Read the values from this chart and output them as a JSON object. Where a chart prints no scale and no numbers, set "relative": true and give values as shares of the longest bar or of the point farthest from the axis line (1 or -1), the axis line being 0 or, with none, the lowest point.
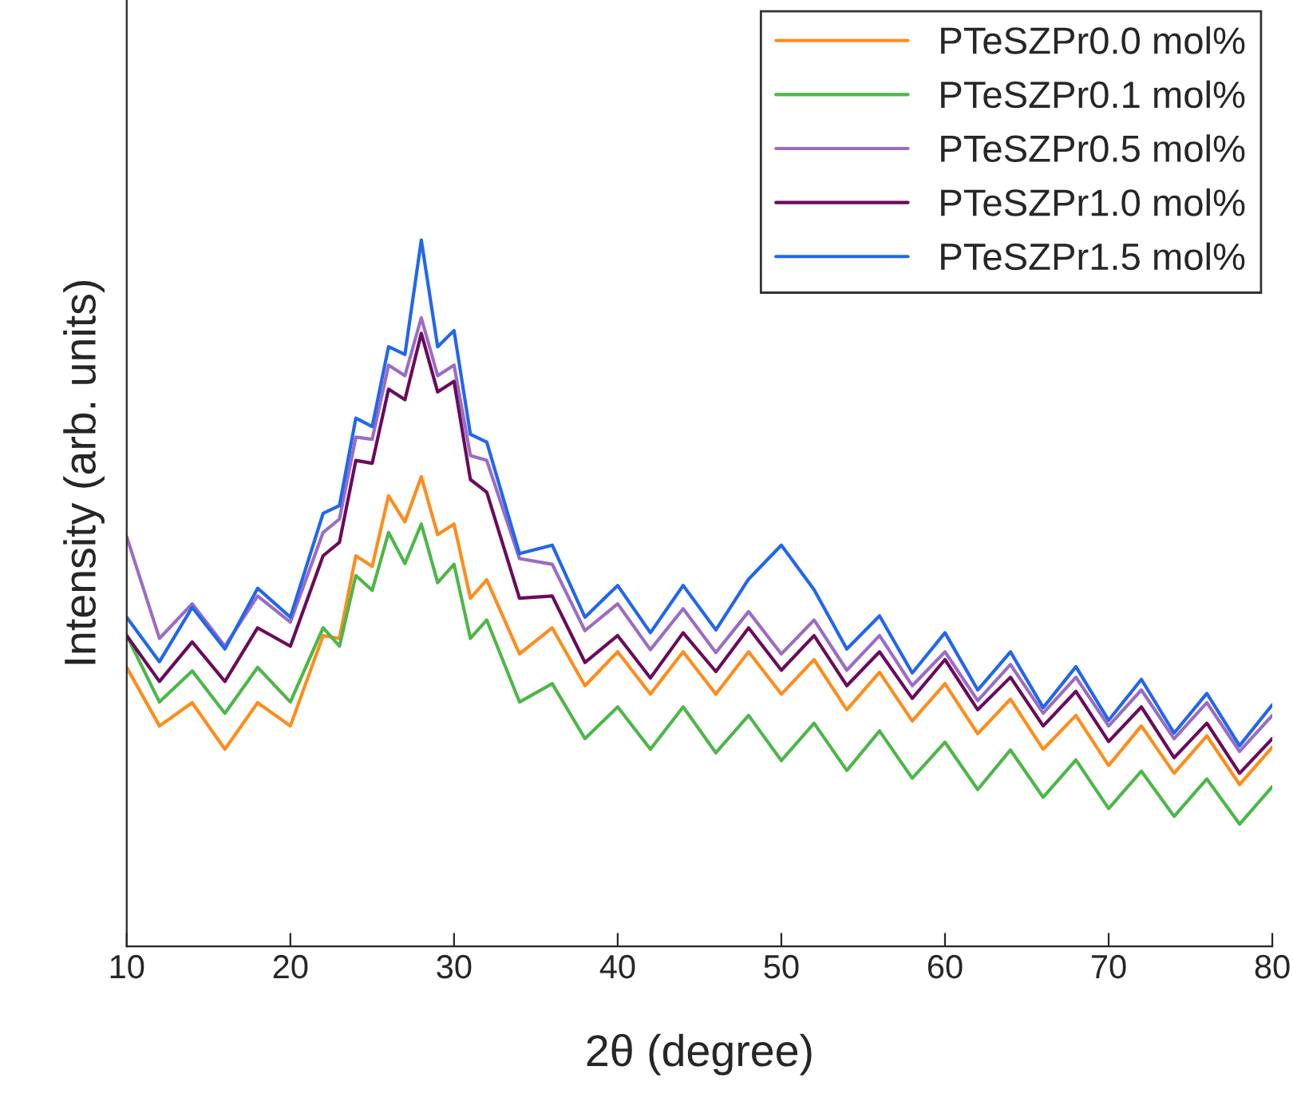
{
  "chart_data": {
    "type": "line",
    "relative": true,
    "xlabel": "2θ (degree)",
    "ylabel": "Intensity (arb. units)",
    "x": [
      10,
      12,
      14,
      16,
      18,
      20,
      22,
      23,
      24,
      25,
      26,
      27,
      28,
      29,
      30,
      31,
      32,
      34,
      36,
      38,
      40,
      42,
      44,
      46,
      48,
      50,
      52,
      54,
      56,
      58,
      60,
      62,
      64,
      66,
      68,
      70,
      72,
      74,
      76,
      78,
      80
    ],
    "xlim": [
      10,
      80
    ],
    "xticks": [
      10,
      20,
      30,
      40,
      50,
      60,
      70,
      80
    ],
    "legend": "top right",
    "grid": false,
    "line_style": "solid",
    "marker": "none",
    "series": [
      {
        "name": "PTeSZPr0.0 mol%",
        "color": "#ff8c1a",
        "values": [
          0.395,
          0.312,
          0.345,
          0.279,
          0.345,
          0.312,
          0.44,
          0.436,
          0.553,
          0.538,
          0.638,
          0.601,
          0.665,
          0.583,
          0.598,
          0.493,
          0.519,
          0.414,
          0.451,
          0.369,
          0.417,
          0.357,
          0.417,
          0.357,
          0.417,
          0.357,
          0.406,
          0.335,
          0.388,
          0.319,
          0.372,
          0.301,
          0.35,
          0.279,
          0.327,
          0.256,
          0.312,
          0.245,
          0.298,
          0.229,
          0.282
        ]
      },
      {
        "name": "PTeSZPr0.1 mol%",
        "color": "#4cb748",
        "values": [
          0.44,
          0.346,
          0.39,
          0.33,
          0.395,
          0.346,
          0.451,
          0.425,
          0.525,
          0.504,
          0.586,
          0.542,
          0.598,
          0.515,
          0.541,
          0.436,
          0.462,
          0.346,
          0.372,
          0.294,
          0.339,
          0.279,
          0.339,
          0.274,
          0.327,
          0.263,
          0.316,
          0.249,
          0.305,
          0.238,
          0.289,
          0.222,
          0.278,
          0.211,
          0.264,
          0.195,
          0.248,
          0.184,
          0.237,
          0.173,
          0.226
        ]
      },
      {
        "name": "PTeSZPr0.5 mol%",
        "color": "#9b6cc4",
        "values": [
          0.58,
          0.436,
          0.485,
          0.425,
          0.496,
          0.459,
          0.586,
          0.605,
          0.721,
          0.718,
          0.823,
          0.808,
          0.89,
          0.808,
          0.823,
          0.695,
          0.688,
          0.549,
          0.541,
          0.447,
          0.485,
          0.42,
          0.478,
          0.416,
          0.474,
          0.414,
          0.462,
          0.391,
          0.44,
          0.369,
          0.417,
          0.348,
          0.399,
          0.33,
          0.381,
          0.312,
          0.363,
          0.294,
          0.345,
          0.276,
          0.327
        ]
      },
      {
        "name": "PTeSZPr1.0 mol%",
        "color": "#6b0a5c",
        "values": [
          0.44,
          0.375,
          0.431,
          0.375,
          0.451,
          0.425,
          0.553,
          0.572,
          0.688,
          0.684,
          0.789,
          0.774,
          0.868,
          0.785,
          0.8,
          0.661,
          0.643,
          0.493,
          0.496,
          0.402,
          0.44,
          0.38,
          0.444,
          0.389,
          0.451,
          0.391,
          0.44,
          0.369,
          0.417,
          0.351,
          0.406,
          0.335,
          0.381,
          0.312,
          0.361,
          0.29,
          0.339,
          0.267,
          0.316,
          0.245,
          0.294
        ]
      },
      {
        "name": "PTeSZPr1.5 mol%",
        "color": "#2166ee",
        "values": [
          0.466,
          0.403,
          0.48,
          0.421,
          0.507,
          0.466,
          0.613,
          0.624,
          0.748,
          0.736,
          0.849,
          0.838,
          1.0,
          0.849,
          0.872,
          0.725,
          0.714,
          0.556,
          0.568,
          0.466,
          0.511,
          0.444,
          0.511,
          0.448,
          0.52,
          0.568,
          0.505,
          0.421,
          0.468,
          0.387,
          0.444,
          0.363,
          0.417,
          0.338,
          0.396,
          0.32,
          0.378,
          0.302,
          0.358,
          0.284,
          0.342
        ]
      }
    ]
  }
}
